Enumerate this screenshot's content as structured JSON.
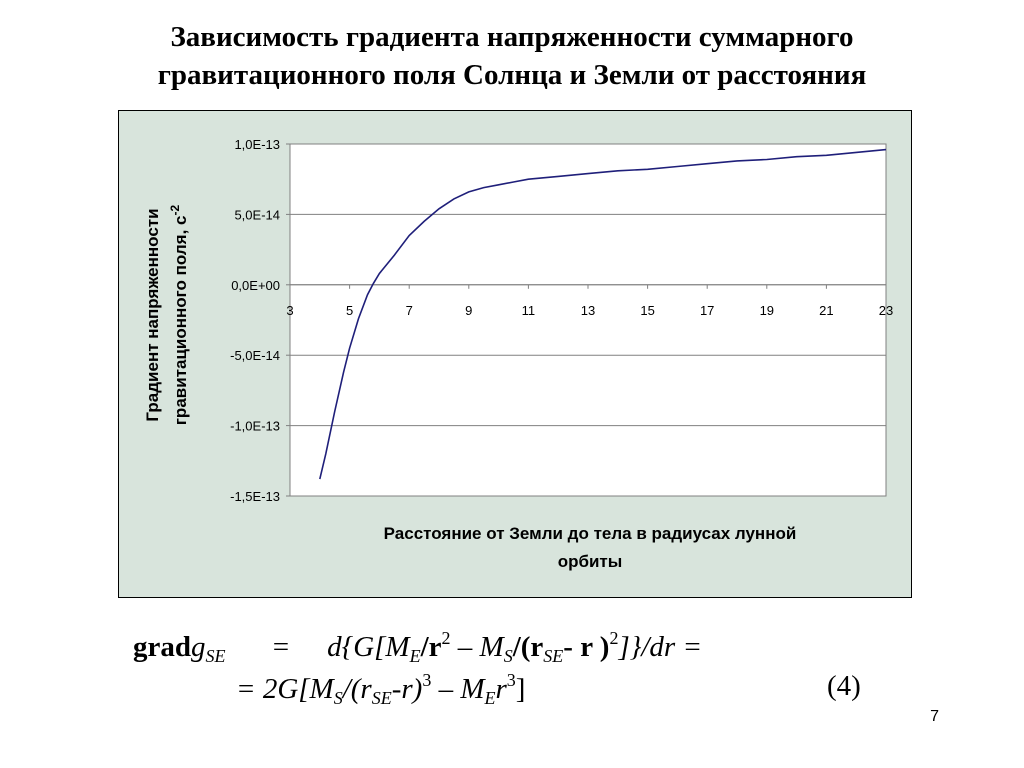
{
  "slide": {
    "title_line1": "Зависимость градиента напряженности суммарного",
    "title_line2": "гравитационного поля Солнца и Земли от расстояния",
    "page_number": "7"
  },
  "chart_data": {
    "type": "line",
    "ylabel_line1": "Градиент напряженности",
    "ylabel_line2": "гравитационного поля, с",
    "ylabel_superscript": "-2",
    "xlabel_line1": "Расстояние от Земли до тела в радиусах лунной",
    "xlabel_line2": "орбиты",
    "xlim": [
      3,
      23
    ],
    "ylim": [
      -1.5e-13,
      1e-13
    ],
    "x_ticks": [
      3,
      5,
      7,
      9,
      11,
      13,
      15,
      17,
      19,
      21,
      23
    ],
    "x_tick_labels": [
      "3",
      "5",
      "7",
      "9",
      "11",
      "13",
      "15",
      "17",
      "19",
      "21",
      "23"
    ],
    "y_ticks": [
      1e-13,
      5e-14,
      0,
      -5e-14,
      -1e-13,
      -1.5e-13
    ],
    "y_tick_labels": [
      "1,0E-13",
      "5,0E-14",
      "0,0E+00",
      "-5,0E-14",
      "-1,0E-13",
      "-1,5E-13"
    ],
    "grid": true,
    "line_color": "#1f1f7a",
    "series": [
      {
        "x": [
          4.0,
          4.2,
          4.5,
          4.8,
          5.0,
          5.3,
          5.6,
          5.8,
          6.0,
          6.5,
          7.0,
          7.5,
          8.0,
          8.5,
          9.0,
          9.5,
          10.0,
          10.5,
          11.0,
          11.5,
          12.0,
          13.0,
          14.0,
          15.0,
          16.0,
          17.0,
          18.0,
          19.0,
          20.0,
          21.0,
          22.0,
          23.0
        ],
        "y": [
          -1.38e-13,
          -1.2e-13,
          -9e-14,
          -6.2e-14,
          -4.5e-14,
          -2.4e-14,
          -7e-15,
          1e-15,
          8e-15,
          2.1e-14,
          3.5e-14,
          4.5e-14,
          5.4e-14,
          6.1e-14,
          6.6e-14,
          6.9e-14,
          7.1e-14,
          7.3e-14,
          7.5e-14,
          7.6e-14,
          7.7e-14,
          7.9e-14,
          8.1e-14,
          8.2e-14,
          8.4e-14,
          8.6e-14,
          8.8e-14,
          8.9e-14,
          9.1e-14,
          9.2e-14,
          9.4e-14,
          9.6e-14
        ]
      }
    ]
  },
  "formula": {
    "line1": {
      "bold_grad": "grad",
      "g": "g",
      "sub_se": "SE",
      "eq": "=",
      "d_open": "d{G[M",
      "sub_e": "E",
      "slash_r": "/r",
      "sup_2": "2",
      "minus_ms": " – M",
      "sub_s": "S",
      "slash_paren_r": "/(r",
      "sub_se2": "SE",
      "minus_r": "- r )",
      "sup_2b": "2",
      "close_dr": "]}/dr ="
    },
    "line2": {
      "eq_2g": "= 2G[M",
      "sub_s": "S",
      "slash_paren": "/(r",
      "sub_se": "SE",
      "minus_r": "-r)",
      "sup_3": "3",
      "minus_me": " – M",
      "sub_e": "E",
      "r": "r",
      "sup_3b": "3",
      "close": "]"
    },
    "number": "(4)"
  }
}
